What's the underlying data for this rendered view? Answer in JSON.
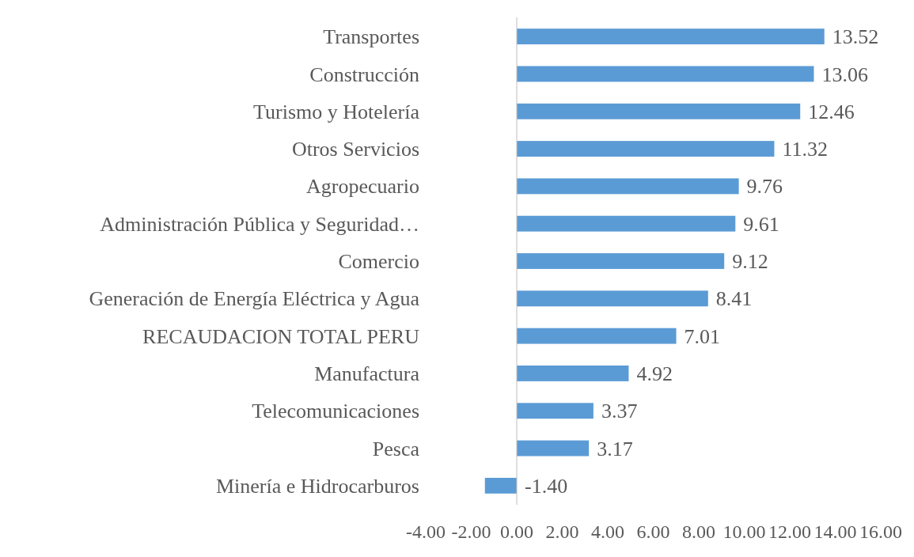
{
  "chart_data": {
    "type": "bar",
    "orientation": "horizontal",
    "value_labels": [
      "13.52",
      "13.06",
      "12.46",
      "11.32",
      "9.76",
      "9.61",
      "9.12",
      "8.41",
      "7.01",
      "4.92",
      "3.37",
      "3.17",
      "-1.40"
    ],
    "categories": [
      "Transportes",
      "Construcción",
      "Turismo y Hotelería",
      "Otros Servicios",
      "Agropecuario",
      "Administración Pública y Seguridad…",
      "Comercio",
      "Generación de Energía Eléctrica y Agua",
      "RECAUDACION TOTAL PERU",
      "Manufactura",
      "Telecomunicaciones",
      "Pesca",
      "Minería e Hidrocarburos"
    ],
    "values": [
      13.52,
      13.06,
      12.46,
      11.32,
      9.76,
      9.61,
      9.12,
      8.41,
      7.01,
      4.92,
      3.37,
      3.17,
      -1.4
    ],
    "color": "#5b9bd5",
    "xlim": [
      -4,
      16
    ],
    "xticks": [
      {
        "value": -4,
        "label": "-4.00"
      },
      {
        "value": -2,
        "label": "-2.00"
      },
      {
        "value": 0,
        "label": "0.00"
      },
      {
        "value": 2,
        "label": "2.00"
      },
      {
        "value": 4,
        "label": "4.00"
      },
      {
        "value": 6,
        "label": "6.00"
      },
      {
        "value": 8,
        "label": "8.00"
      },
      {
        "value": 10,
        "label": "10.00"
      },
      {
        "value": 12,
        "label": "12.00"
      },
      {
        "value": 14,
        "label": "14.00"
      },
      {
        "value": 16,
        "label": "16.00"
      }
    ]
  }
}
